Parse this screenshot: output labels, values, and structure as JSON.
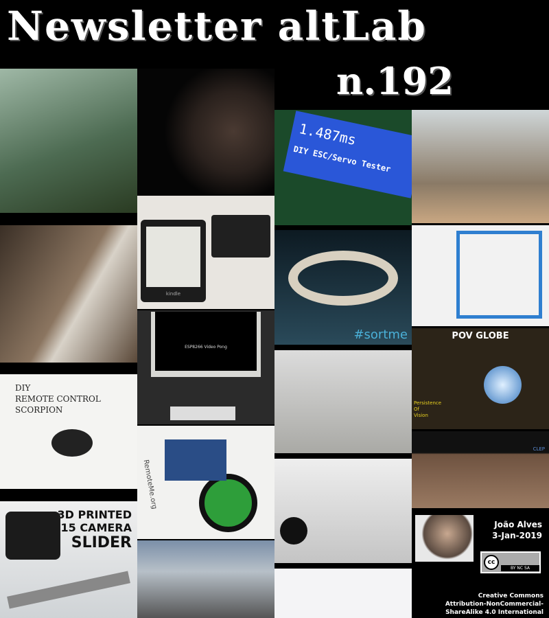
{
  "header": {
    "title": "Newsletter altLab",
    "issue": "n.192"
  },
  "tiles": {
    "lcd": [
      "1.487ms",
      "DIY ESC/Servo Tester"
    ],
    "kindle": "kindle",
    "pong": "ESP8266 Video Pong",
    "sortme": "#sortme",
    "pov": {
      "title": "POV GLOBE",
      "caption": [
        "Persistence",
        "Of",
        "Vision"
      ]
    },
    "scorpion": [
      "DIY",
      "REMOTE CONTROL",
      "SCORPION"
    ],
    "robot": "RemoteMe.org",
    "moon": "CLEP",
    "slider": [
      "3D PRINTED",
      "$15 CAMERA",
      "SLIDER"
    ]
  },
  "author": {
    "name": "João Alves",
    "date": "3-Jan-2019",
    "license_badge": "BY NC SA",
    "license": [
      "Creative Commons",
      "Attribution-NonCommercial-",
      "ShareAlike 4.0 International"
    ]
  }
}
